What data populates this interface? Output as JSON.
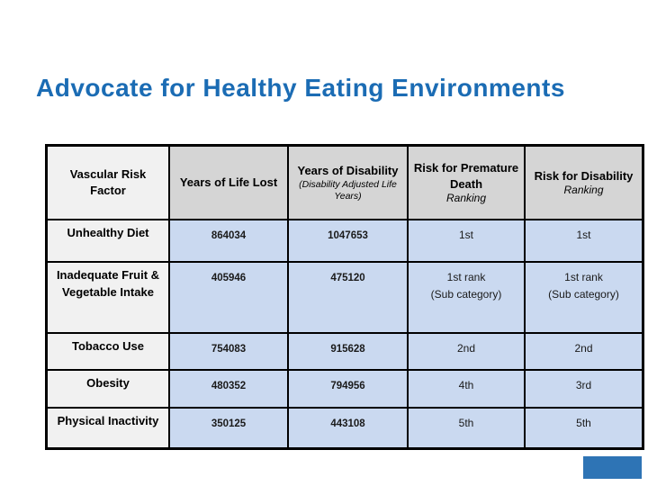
{
  "slide": {
    "title": "Advocate for Healthy Eating Environments"
  },
  "colors": {
    "title_blue": "#1b6cb4",
    "header_gray": "#d5d5d5",
    "factor_column_gray": "#f1f1f1",
    "data_cell_blue": "#cad9f0",
    "table_border": "#000000",
    "accent_bar_blue": "#2e74b5"
  },
  "table": {
    "headers": [
      {
        "label": "Vascular Risk Factor",
        "subnote": ""
      },
      {
        "label": "Years of Life Lost",
        "subnote": ""
      },
      {
        "label": "Years of Disability",
        "subnote": "(Disability Adjusted Life Years)"
      },
      {
        "label": "Risk for Premature Death",
        "subnote": "Ranking"
      },
      {
        "label": "Risk for Disability",
        "subnote": "Ranking"
      }
    ],
    "rows": [
      {
        "factor": "Unhealthy Diet",
        "years_of_life_lost": "864034",
        "years_of_disability": "1047653",
        "premature_death_ranking": "1st",
        "premature_death_ranking_sub": "",
        "disability_ranking": "1st",
        "disability_ranking_sub": ""
      },
      {
        "factor": "Inadequate Fruit & Vegetable Intake",
        "years_of_life_lost": "405946",
        "years_of_disability": "475120",
        "premature_death_ranking": "1st rank",
        "premature_death_ranking_sub": "(Sub category)",
        "disability_ranking": "1st rank",
        "disability_ranking_sub": "(Sub category)"
      },
      {
        "factor": "Tobacco Use",
        "years_of_life_lost": "754083",
        "years_of_disability": "915628",
        "premature_death_ranking": "2nd",
        "premature_death_ranking_sub": "",
        "disability_ranking": "2nd",
        "disability_ranking_sub": ""
      },
      {
        "factor": "Obesity",
        "years_of_life_lost": "480352",
        "years_of_disability": "794956",
        "premature_death_ranking": "4th",
        "premature_death_ranking_sub": "",
        "disability_ranking": "3rd",
        "disability_ranking_sub": ""
      },
      {
        "factor": "Physical Inactivity",
        "years_of_life_lost": "350125",
        "years_of_disability": "443108",
        "premature_death_ranking": "5th",
        "premature_death_ranking_sub": "",
        "disability_ranking": "5th",
        "disability_ranking_sub": ""
      }
    ]
  }
}
